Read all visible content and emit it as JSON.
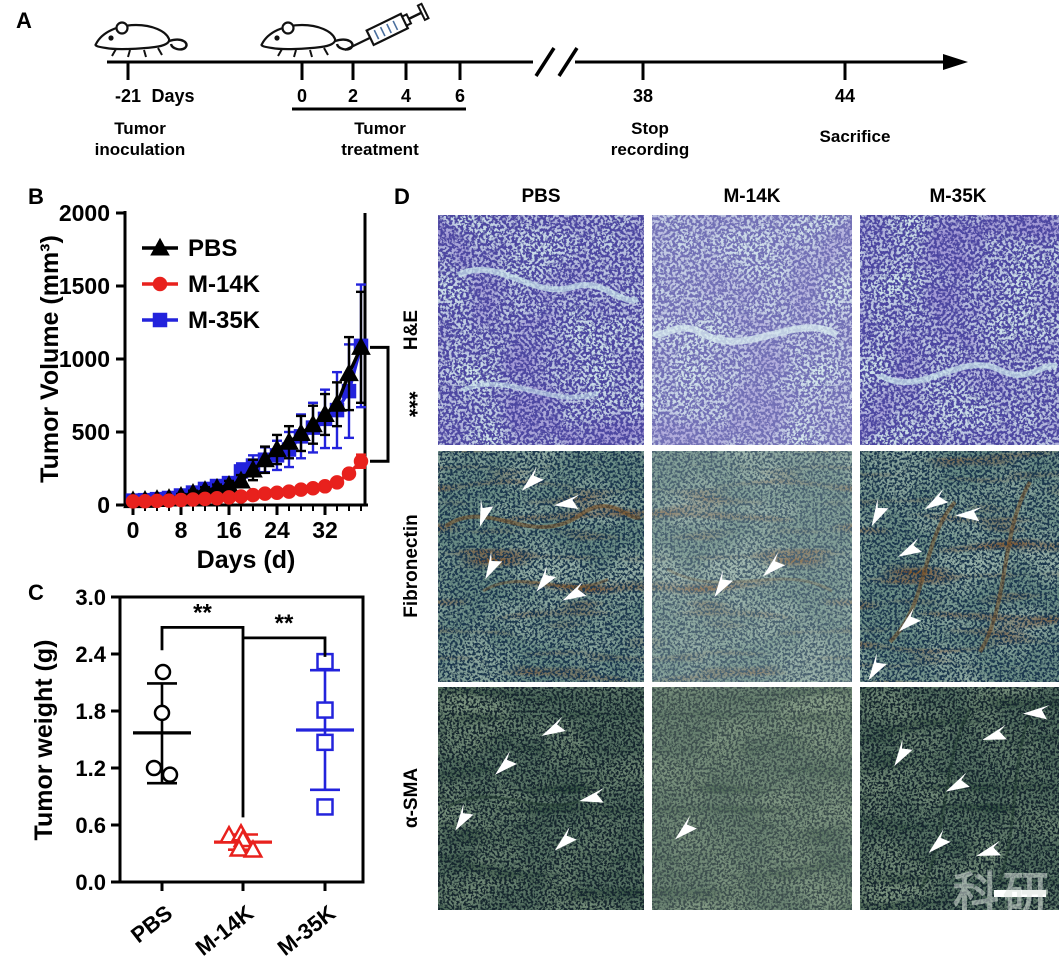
{
  "figure": {
    "panel_labels": {
      "a": "A",
      "b": "B",
      "c": "C",
      "d": "D"
    }
  },
  "panelA": {
    "days_label": "Days",
    "inoculation": {
      "tick": "-21",
      "caption_line1": "Tumor",
      "caption_line2": "inoculation"
    },
    "treatment": {
      "ticks": [
        "0",
        "2",
        "4",
        "6"
      ],
      "caption_line1": "Tumor",
      "caption_line2": "treatment"
    },
    "stop": {
      "tick": "38",
      "caption_line1": "Stop",
      "caption_line2": "recording"
    },
    "sacrifice": {
      "tick": "44",
      "caption": "Sacrifice"
    }
  },
  "chart_data": [
    {
      "id": "tumor-volume-curve",
      "type": "line",
      "xlabel": "Days (d)",
      "ylabel": "Tumor Volume (mm³)",
      "xlim": [
        0,
        38
      ],
      "ylim": [
        0,
        2000
      ],
      "xticks_major": [
        0,
        8,
        16,
        24,
        32
      ],
      "xtick_minor_step": 2,
      "yticks": [
        0,
        500,
        1000,
        1500,
        2000
      ],
      "legend_position": "top-left-inside",
      "x": [
        0,
        2,
        4,
        6,
        8,
        10,
        12,
        14,
        16,
        18,
        20,
        22,
        24,
        26,
        28,
        30,
        32,
        34,
        36,
        38
      ],
      "series": [
        {
          "name": "PBS",
          "color": "#000000",
          "marker": "triangle",
          "values": [
            30,
            32,
            38,
            45,
            60,
            80,
            100,
            115,
            135,
            165,
            240,
            310,
            380,
            430,
            490,
            550,
            620,
            690,
            900,
            1080
          ],
          "errors": [
            8,
            8,
            10,
            12,
            15,
            18,
            22,
            25,
            30,
            40,
            70,
            90,
            100,
            110,
            120,
            130,
            140,
            150,
            250,
            380
          ]
        },
        {
          "name": "M-14K",
          "color": "#e8211d",
          "marker": "circle",
          "values": [
            25,
            26,
            28,
            30,
            34,
            38,
            42,
            46,
            52,
            58,
            68,
            78,
            84,
            92,
            105,
            115,
            128,
            155,
            215,
            300
          ],
          "errors": [
            4,
            4,
            5,
            5,
            6,
            6,
            7,
            8,
            8,
            9,
            10,
            10,
            12,
            12,
            14,
            15,
            18,
            22,
            30,
            45
          ]
        },
        {
          "name": "M-35K",
          "color": "#2323dc",
          "marker": "square",
          "values": [
            30,
            33,
            40,
            48,
            65,
            85,
            110,
            130,
            150,
            230,
            270,
            310,
            340,
            380,
            470,
            530,
            590,
            650,
            780,
            1090
          ],
          "errors": [
            8,
            9,
            11,
            13,
            16,
            20,
            25,
            30,
            35,
            55,
            70,
            85,
            100,
            120,
            150,
            170,
            200,
            260,
            320,
            420
          ]
        }
      ],
      "significance": {
        "label": "***",
        "from_value": 1080,
        "to_value": 300
      }
    },
    {
      "id": "tumor-weight-scatter",
      "type": "scatter",
      "ylabel": "Tumor weight (g)",
      "ylim": [
        0.0,
        3.0
      ],
      "yticks": [
        0.0,
        0.6,
        1.2,
        1.8,
        2.4,
        3.0
      ],
      "categories": [
        "PBS",
        "M-14K",
        "M-35K"
      ],
      "groups": [
        {
          "name": "PBS",
          "color": "#000000",
          "marker": "circle",
          "points": [
            2.21,
            1.78,
            1.2,
            1.13
          ],
          "jitter": [
            1,
            0,
            -8,
            8
          ],
          "mean": 1.57,
          "upper": 2.09,
          "lower": 1.04
        },
        {
          "name": "M-14K",
          "color": "#e8211d",
          "marker": "triangle",
          "points": [
            0.49,
            0.51,
            0.45,
            0.35,
            0.34
          ],
          "jitter": [
            -14,
            -2,
            0,
            -4,
            10
          ],
          "mean": 0.42,
          "upper": 0.5,
          "lower": 0.34
        },
        {
          "name": "M-35K",
          "color": "#2323dc",
          "marker": "square",
          "points": [
            2.32,
            1.81,
            1.47,
            0.79
          ],
          "jitter": [
            0,
            0,
            0,
            0
          ],
          "mean": 1.6,
          "upper": 2.23,
          "lower": 0.97
        }
      ],
      "significance": [
        {
          "label": "**",
          "groups": [
            "PBS",
            "M-14K"
          ],
          "bar_y": 2.68,
          "left_drop_to": 2.44,
          "right_drop_to": 0.68
        },
        {
          "label": "**",
          "groups": [
            "M-14K",
            "M-35K"
          ],
          "bar_y": 2.57,
          "left_drop_to": 2.57,
          "right_drop_to": 2.37
        }
      ]
    }
  ],
  "panelD": {
    "col_headers": [
      "PBS",
      "M-14K",
      "M-35K"
    ],
    "row_labels": [
      "H&E",
      "Fibronectin",
      "α-SMA"
    ],
    "watermark": "科研",
    "arrow_color": "#ffffff",
    "tiles": [
      {
        "row": 0,
        "col": 0,
        "stain": "H&E",
        "group": "PBS",
        "arrows": []
      },
      {
        "row": 0,
        "col": 1,
        "stain": "H&E",
        "group": "M-14K",
        "arrows": []
      },
      {
        "row": 0,
        "col": 2,
        "stain": "H&E",
        "group": "M-35K",
        "arrows": []
      },
      {
        "row": 1,
        "col": 0,
        "stain": "Fibronectin",
        "group": "PBS",
        "arrows": [
          [
            22,
            26,
            -30
          ],
          [
            46,
            12,
            0
          ],
          [
            64,
            22,
            35
          ],
          [
            26,
            49,
            -20
          ],
          [
            52,
            55,
            -10
          ],
          [
            67,
            61,
            15
          ]
        ]
      },
      {
        "row": 1,
        "col": 1,
        "stain": "Fibronectin",
        "group": "M-14K",
        "arrows": [
          [
            35,
            57,
            -15
          ],
          [
            61,
            49,
            0
          ]
        ]
      },
      {
        "row": 1,
        "col": 2,
        "stain": "Fibronectin",
        "group": "M-35K",
        "arrows": [
          [
            9,
            26,
            -20
          ],
          [
            39,
            21,
            10
          ],
          [
            56,
            27,
            40
          ],
          [
            26,
            42,
            15
          ],
          [
            25,
            73,
            0
          ],
          [
            8,
            93,
            -15
          ]
        ]
      },
      {
        "row": 2,
        "col": 0,
        "stain": "α-SMA",
        "group": "PBS",
        "arrows": [
          [
            57,
            18,
            15
          ],
          [
            33,
            34,
            0
          ],
          [
            12,
            58,
            -15
          ],
          [
            76,
            49,
            30
          ],
          [
            62,
            68,
            0
          ]
        ]
      },
      {
        "row": 2,
        "col": 1,
        "stain": "α-SMA",
        "group": "M-14K",
        "arrows": [
          [
            17,
            63,
            0
          ]
        ]
      },
      {
        "row": 2,
        "col": 2,
        "stain": "α-SMA",
        "group": "M-35K",
        "arrows": [
          [
            21,
            29,
            -15
          ],
          [
            69,
            21,
            25
          ],
          [
            90,
            11,
            40
          ],
          [
            50,
            43,
            15
          ],
          [
            40,
            69,
            0
          ],
          [
            66,
            73,
            25
          ]
        ]
      }
    ]
  }
}
